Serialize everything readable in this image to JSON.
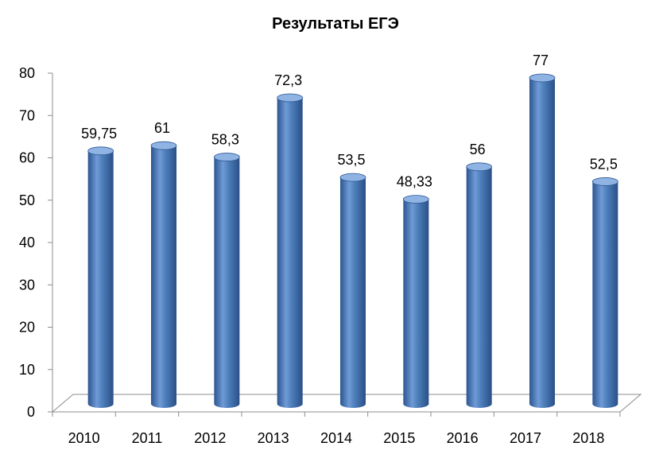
{
  "chart_data": {
    "type": "bar",
    "title": "Результаты ЕГЭ",
    "xlabel": "",
    "ylabel": "",
    "categories": [
      "2010",
      "2011",
      "2012",
      "2013",
      "2014",
      "2015",
      "2016",
      "2017",
      "2018"
    ],
    "values": [
      59.75,
      61,
      58.3,
      72.3,
      53.5,
      48.33,
      56,
      77,
      52.5
    ],
    "data_labels": [
      "59,75",
      "61",
      "58,3",
      "72,3",
      "53,5",
      "48,33",
      "56",
      "77",
      "52,5"
    ],
    "ylim": [
      0,
      80
    ],
    "yticks": [
      "0",
      "10",
      "20",
      "30",
      "40",
      "50",
      "60",
      "70",
      "80"
    ],
    "grid": false,
    "legend": "none",
    "bar_style": "3d-cylinder",
    "colors": {
      "bar": "#4f81bd",
      "bar_dark": "#2c5591",
      "bar_light": "#8fb4e3",
      "axis": "#8c8c8c"
    }
  }
}
